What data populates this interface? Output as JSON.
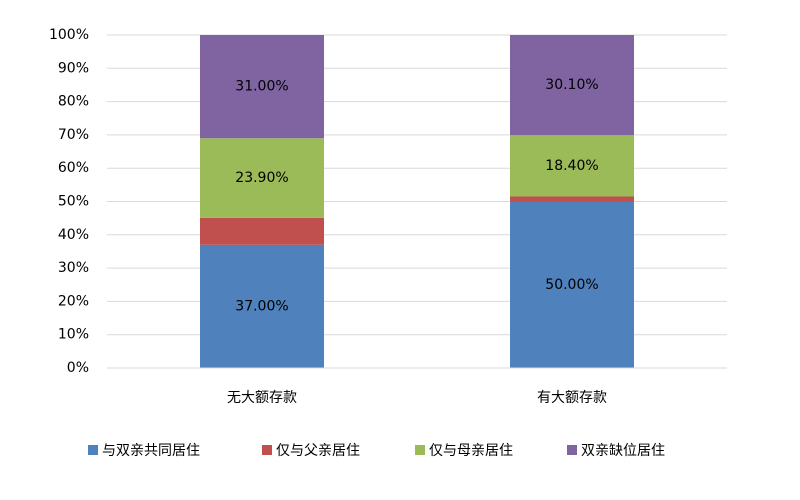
{
  "chart_data": {
    "type": "stacked-bar",
    "categories": [
      "无大额存款",
      "有大额存款"
    ],
    "series": [
      {
        "name": "与双亲共同居住",
        "color": "#4f81bd",
        "values": [
          37.0,
          50.0
        ],
        "value_labels": [
          "37.00%",
          "50.00%"
        ]
      },
      {
        "name": "仅与父亲居住",
        "color": "#c0504d",
        "values": [
          8.1,
          1.5
        ]
      },
      {
        "name": "仅与母亲居住",
        "color": "#9bbb59",
        "values": [
          23.9,
          18.4
        ],
        "value_labels": [
          "23.90%",
          "18.40%"
        ]
      },
      {
        "name": "双亲缺位居住",
        "color": "#8064a2",
        "values": [
          31.0,
          30.1
        ],
        "value_labels": [
          "31.00%",
          "30.10%"
        ]
      }
    ],
    "ylim": [
      0,
      100
    ],
    "yticks": [
      {
        "value": 0,
        "label": "0%"
      },
      {
        "value": 10,
        "label": "10%"
      },
      {
        "value": 20,
        "label": "20%"
      },
      {
        "value": 30,
        "label": "30%"
      },
      {
        "value": 40,
        "label": "40%"
      },
      {
        "value": 50,
        "label": "50%"
      },
      {
        "value": 60,
        "label": "60%"
      },
      {
        "value": 70,
        "label": "70%"
      },
      {
        "value": 80,
        "label": "80%"
      },
      {
        "value": 90,
        "label": "90%"
      },
      {
        "value": 100,
        "label": "100%"
      }
    ],
    "grid": true,
    "legend": "bottom"
  }
}
